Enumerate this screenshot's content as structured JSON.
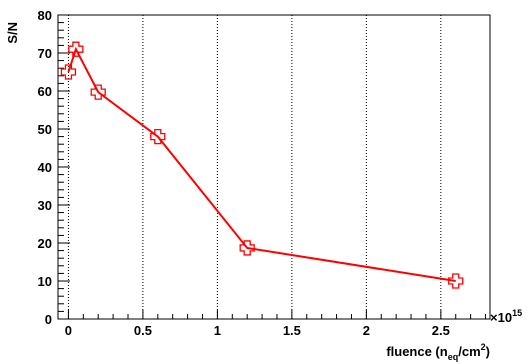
{
  "chart_data": {
    "type": "line",
    "title": "",
    "xlabel": "fluence (n",
    "xlabel_sub": "eq",
    "xlabel_unit": "/cm",
    "xlabel_sup": "2",
    "xlabel_close": ")",
    "ylabel": "S/N",
    "x_multiplier_base": "×10",
    "x_multiplier_exp": "15",
    "xlim": [
      -0.07,
      2.83
    ],
    "ylim": [
      0,
      80
    ],
    "x_ticks": [
      0,
      0.5,
      1,
      1.5,
      2,
      2.5
    ],
    "x_tick_labels": [
      "0",
      "0.5",
      "1",
      "1.5",
      "2",
      "2.5"
    ],
    "y_ticks": [
      0,
      10,
      20,
      30,
      40,
      50,
      60,
      70,
      80
    ],
    "y_tick_labels": [
      "0",
      "10",
      "20",
      "30",
      "40",
      "50",
      "60",
      "70",
      "80"
    ],
    "grid": "vertical-dotted",
    "series": [
      {
        "color": "#ff0000",
        "marker": "open-cross",
        "x": [
          0,
          0.05,
          0.2,
          0.6,
          1.2,
          2.6
        ],
        "y": [
          65,
          71,
          59.7,
          48,
          18.7,
          10
        ]
      }
    ]
  }
}
